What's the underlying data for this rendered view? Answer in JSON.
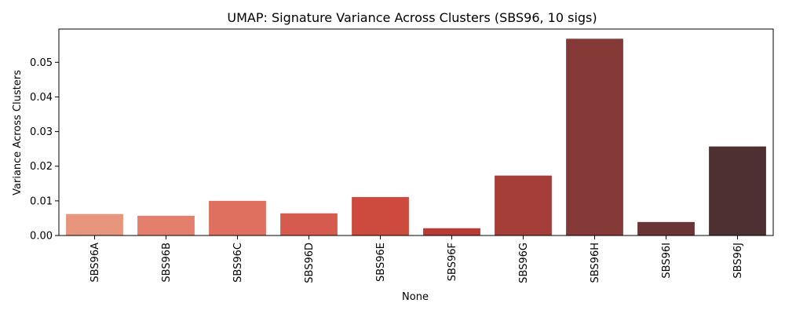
{
  "chart_data": {
    "type": "bar",
    "title": "UMAP: Signature Variance Across Clusters (SBS96, 10 sigs)",
    "xlabel": "None",
    "ylabel": "Variance Across Clusters",
    "categories": [
      "SBS96A",
      "SBS96B",
      "SBS96C",
      "SBS96D",
      "SBS96E",
      "SBS96F",
      "SBS96G",
      "SBS96H",
      "SBS96I",
      "SBS96J"
    ],
    "values": [
      0.0062,
      0.0057,
      0.01,
      0.0064,
      0.0111,
      0.0021,
      0.0173,
      0.0568,
      0.0039,
      0.0257
    ],
    "colors": [
      "#e8957e",
      "#e47f6e",
      "#df6f5f",
      "#d65b4f",
      "#cd4a3f",
      "#b83a35",
      "#a53d39",
      "#863a38",
      "#6b3434",
      "#4e3032"
    ],
    "ylim": [
      0,
      0.0596
    ],
    "yticks": [
      0.0,
      0.01,
      0.02,
      0.03,
      0.04,
      0.05
    ],
    "ytick_labels": [
      "0.00",
      "0.01",
      "0.02",
      "0.03",
      "0.04",
      "0.05"
    ],
    "grid": false,
    "legend": "none"
  }
}
